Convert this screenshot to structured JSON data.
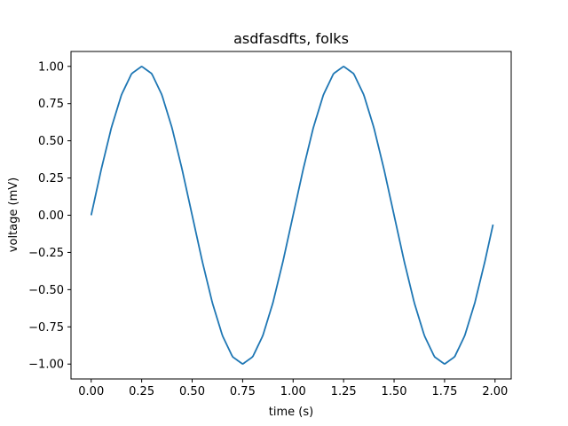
{
  "chart_data": {
    "type": "line",
    "title": "asdfasdfts, folks",
    "xlabel": "time (s)",
    "ylabel": "voltage (mV)",
    "xlim": [
      -0.1,
      2.08
    ],
    "ylim": [
      -1.1,
      1.1
    ],
    "xticks": [
      0.0,
      0.25,
      0.5,
      0.75,
      1.0,
      1.25,
      1.5,
      1.75,
      2.0
    ],
    "xtick_labels": [
      "0.00",
      "0.25",
      "0.50",
      "0.75",
      "1.00",
      "1.25",
      "1.50",
      "1.75",
      "2.00"
    ],
    "yticks": [
      -1.0,
      -0.75,
      -0.5,
      -0.25,
      0.0,
      0.25,
      0.5,
      0.75,
      1.0
    ],
    "ytick_labels": [
      "−1.00",
      "−0.75",
      "−0.50",
      "−0.25",
      "0.00",
      "0.25",
      "0.50",
      "0.75",
      "1.00"
    ],
    "grid": false,
    "color": "#1f77b4",
    "series": [
      {
        "x": [
          0.0,
          0.05,
          0.1,
          0.15,
          0.2,
          0.25,
          0.3,
          0.35,
          0.4,
          0.45,
          0.5,
          0.55,
          0.6,
          0.65,
          0.7,
          0.75,
          0.8,
          0.85,
          0.9,
          0.95,
          1.0,
          1.05,
          1.1,
          1.15,
          1.2,
          1.25,
          1.3,
          1.35,
          1.4,
          1.45,
          1.5,
          1.55,
          1.6,
          1.65,
          1.7,
          1.75,
          1.8,
          1.85,
          1.9,
          1.95,
          1.99
        ],
        "y": [
          0.0,
          0.309,
          0.588,
          0.809,
          0.951,
          1.0,
          0.951,
          0.809,
          0.588,
          0.309,
          0.0,
          -0.309,
          -0.588,
          -0.809,
          -0.951,
          -1.0,
          -0.951,
          -0.809,
          -0.588,
          -0.309,
          0.0,
          0.309,
          0.588,
          0.809,
          0.951,
          1.0,
          0.951,
          0.809,
          0.588,
          0.309,
          0.0,
          -0.309,
          -0.588,
          -0.809,
          -0.951,
          -1.0,
          -0.951,
          -0.809,
          -0.588,
          -0.309,
          -0.063
        ]
      }
    ]
  }
}
